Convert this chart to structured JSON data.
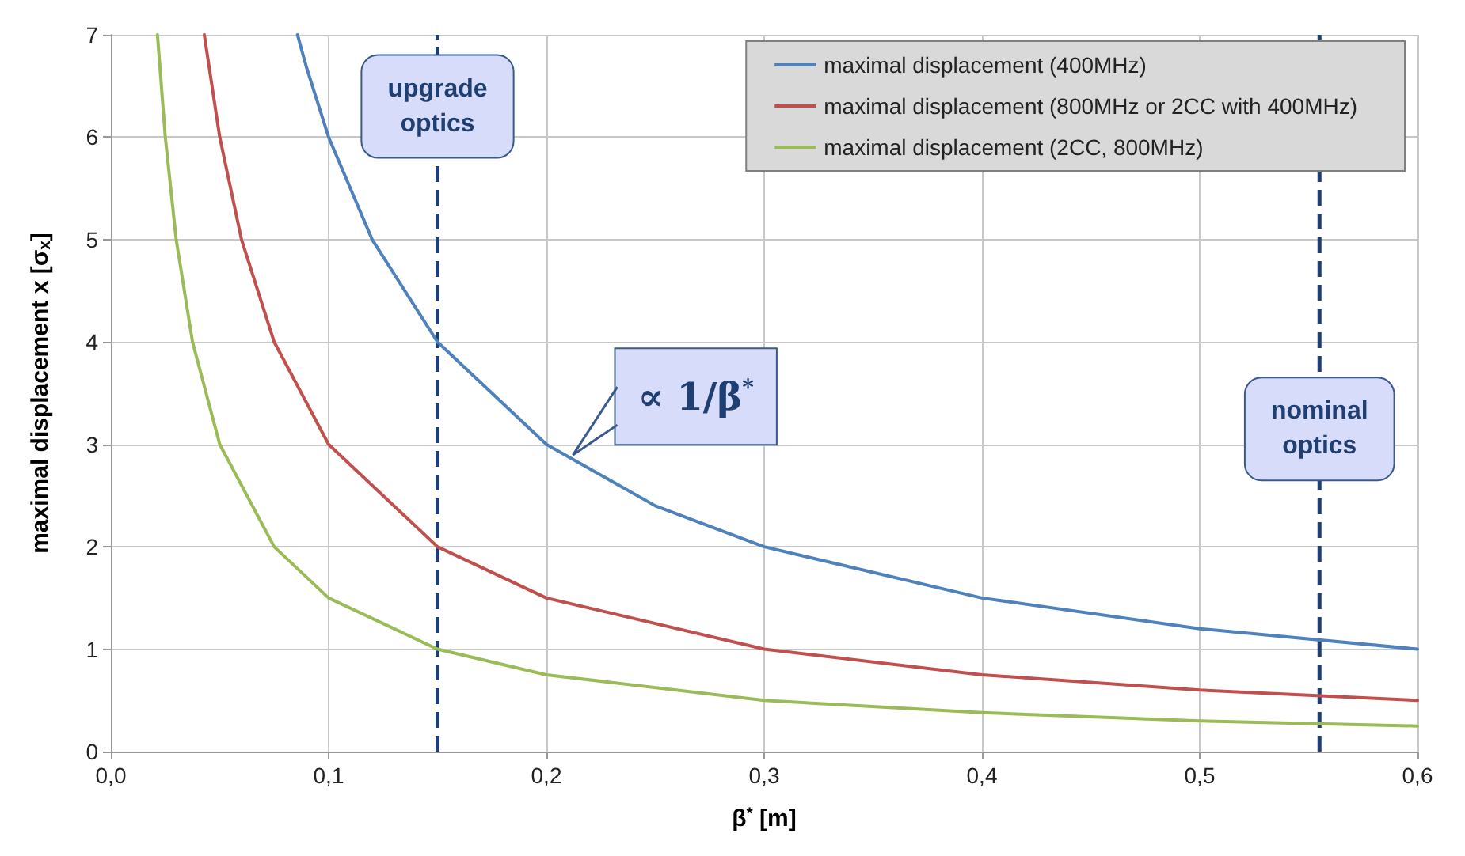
{
  "chart_data": {
    "type": "line",
    "xlabel": "β$^{*}$ [m]",
    "ylabel": "maximal displacement x [σ$_{x}$]",
    "xlim": [
      0,
      0.6
    ],
    "xticks": [
      {
        "value": 0,
        "label": "0,0"
      },
      {
        "value": 0.1,
        "label": "0,1"
      },
      {
        "value": 0.2,
        "label": "0,2"
      },
      {
        "value": 0.3,
        "label": "0,3"
      },
      {
        "value": 0.4,
        "label": "0,4"
      },
      {
        "value": 0.5,
        "label": "0,5"
      },
      {
        "value": 0.6,
        "label": "0,6"
      }
    ],
    "ylim": [
      0,
      7
    ],
    "yticks": [
      0,
      1,
      2,
      3,
      4,
      5,
      6,
      7
    ],
    "series": [
      {
        "name": "maximal displacement (400MHz)",
        "color": "#4f81bd",
        "x": [
          0.0857,
          0.09,
          0.1,
          0.12,
          0.15,
          0.2,
          0.25,
          0.3,
          0.4,
          0.5,
          0.6
        ],
        "values": [
          7,
          6.67,
          6,
          5,
          4,
          3,
          2.4,
          2,
          1.5,
          1.2,
          1
        ]
      },
      {
        "name": "maximal displacement (800MHz or 2CC with 400MHz)",
        "color": "#c0504d",
        "x": [
          0.0429,
          0.05,
          0.06,
          0.075,
          0.1,
          0.15,
          0.2,
          0.3,
          0.4,
          0.5,
          0.6
        ],
        "values": [
          7,
          6,
          5,
          4,
          3,
          2,
          1.5,
          1,
          0.75,
          0.6,
          0.5
        ]
      },
      {
        "name": "maximal displacement (2CC, 800MHz)",
        "color": "#9bbb59",
        "x": [
          0.0214,
          0.025,
          0.03,
          0.0375,
          0.05,
          0.075,
          0.1,
          0.15,
          0.2,
          0.3,
          0.4,
          0.5,
          0.6
        ],
        "values": [
          7,
          6,
          5,
          4,
          3,
          2,
          1.5,
          1,
          0.75,
          0.5,
          0.38,
          0.3,
          0.25
        ]
      }
    ],
    "ref_lines": [
      {
        "axis": "x",
        "value": 0.15,
        "label": "upgrade\noptics",
        "color": "#1f3f73",
        "line_style": "dashed"
      },
      {
        "axis": "x",
        "value": 0.555,
        "label": "nominal\noptics",
        "color": "#1f3f73",
        "line_style": "dashed"
      }
    ],
    "annotations": [
      {
        "text": "∝ 1/β$^{*}$",
        "x": 0.21,
        "y": 2.85
      }
    ],
    "grid": true,
    "legend": "top right",
    "marker": "none",
    "line_style": "solid"
  }
}
